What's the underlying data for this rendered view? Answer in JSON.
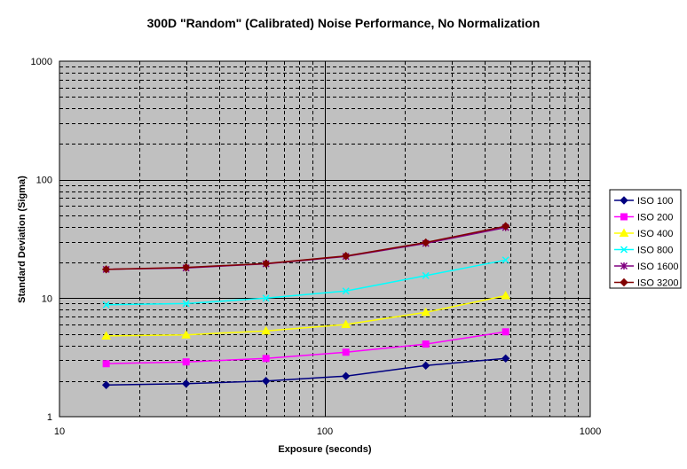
{
  "chart_data": {
    "type": "line",
    "title": "300D \"Random\" (Calibrated) Noise Performance, No Normalization",
    "xlabel": "Exposure (seconds)",
    "ylabel": "Standard Deviation (Sigma)",
    "xscale": "log",
    "yscale": "log",
    "xlim": [
      10,
      1000
    ],
    "ylim": [
      1,
      1000
    ],
    "xticks": [
      "10",
      "100",
      "1000"
    ],
    "yticks": [
      "1",
      "10",
      "100",
      "1000"
    ],
    "grid": true,
    "legend_position": "right",
    "plot_background": "#c0c0c0",
    "x": [
      15,
      30,
      60,
      120,
      240,
      480
    ],
    "series": [
      {
        "name": "ISO 100",
        "color": "#000080",
        "marker": "diamond",
        "values": [
          1.85,
          1.9,
          2.0,
          2.2,
          2.7,
          3.1
        ]
      },
      {
        "name": "ISO 200",
        "color": "#ff00ff",
        "marker": "square",
        "values": [
          2.8,
          2.9,
          3.1,
          3.5,
          4.1,
          5.2
        ]
      },
      {
        "name": "ISO 400",
        "color": "#ffff00",
        "marker": "triangle",
        "values": [
          4.8,
          4.9,
          5.3,
          6.0,
          7.6,
          10.5
        ]
      },
      {
        "name": "ISO 800",
        "color": "#00ffff",
        "marker": "x",
        "values": [
          8.8,
          9.0,
          10.0,
          11.5,
          15.5,
          21.0
        ]
      },
      {
        "name": "ISO 1600",
        "color": "#800080",
        "marker": "star",
        "values": [
          17.5,
          18.0,
          19.5,
          22.5,
          29.0,
          39.5
        ]
      },
      {
        "name": "ISO 3200",
        "color": "#800000",
        "marker": "diamond",
        "values": [
          17.5,
          18.2,
          19.6,
          22.7,
          29.5,
          40.5
        ]
      }
    ]
  }
}
